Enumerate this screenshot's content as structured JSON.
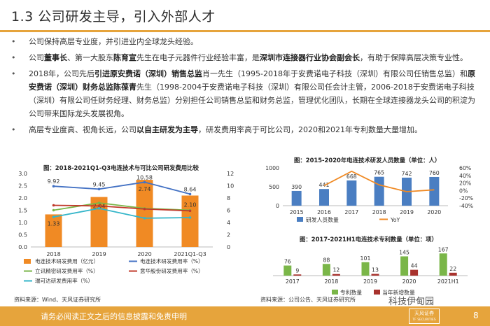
{
  "title": "1.3 公司研发主导，引入外部人才",
  "bullets": [
    {
      "segments": [
        {
          "t": "公司保持高层专业度，并引进业内全球龙头经验。",
          "b": false
        }
      ]
    },
    {
      "segments": [
        {
          "t": "公司",
          "b": false
        },
        {
          "t": "董事长",
          "b": true
        },
        {
          "t": "、第一大股东",
          "b": false
        },
        {
          "t": "陈育宣",
          "b": true
        },
        {
          "t": "先生在电子元器件行业经验丰富，是",
          "b": false
        },
        {
          "t": "深圳市连接器行业协会副会长",
          "b": true
        },
        {
          "t": "，有助于保障高层决策专业性。",
          "b": false
        }
      ]
    },
    {
      "segments": [
        {
          "t": "2018年，公司先后",
          "b": false
        },
        {
          "t": "引进原安费诺（深圳）销售总监",
          "b": true
        },
        {
          "t": "肖一先生（1995-2018年于安费诺电子科技（深圳）有限公司任销售总监）和",
          "b": false
        },
        {
          "t": "原安费诺（深圳）财务总监陈葆青",
          "b": true
        },
        {
          "t": "先生（1998-2004于安费诺电子科技（深圳）有限公司任会计主管，2006-2018于安费诺电子科技（深圳）有限公司任财务经理、财务总监）分别担任公司销售总监和财务总监，管理优化团队，长期在全球连接器龙头公司的积淀为公司带来国际龙头发展视角。",
          "b": false
        }
      ]
    },
    {
      "segments": [
        {
          "t": "高层专业度高、视角长远，公司",
          "b": false
        },
        {
          "t": "以自主研发为主导",
          "b": true
        },
        {
          "t": "，研发费用率高于可比公司，2020和2021年专利数量大量增加。",
          "b": false
        }
      ]
    }
  ],
  "panels": {
    "left": {
      "title": "图：2018-2021Q1-Q3电连技术与可比公司研发费用比较",
      "source": "资料来源：Wind、天风证券研究所"
    },
    "right_top": {
      "title": "图：2015-2020年电连技术研发人员数量（单位：人）"
    },
    "right_bottom": {
      "title": "图：2017-2021H1电连技术专利数量（单位：项）",
      "source": "资料来源：公司公告、天风证券研究所"
    }
  },
  "chart_data": [
    {
      "type": "bar",
      "title": "图：2018-2021Q1-Q3电连技术与可比公司研发费用比较",
      "categories": [
        "2018",
        "2019",
        "2020",
        "2021Q1-Q3"
      ],
      "ylim_left": [
        0,
        3.0
      ],
      "ylim_right": [
        0,
        12
      ],
      "left_ticks": [
        "0.0",
        "0.5",
        "1.0",
        "1.5",
        "2.0",
        "2.5",
        "3.0"
      ],
      "right_ticks": [
        "0",
        "2",
        "4",
        "6",
        "8",
        "10",
        "12"
      ],
      "bar_series": {
        "name": "电连技术研发费用（亿元）",
        "values": [
          1.33,
          2.04,
          2.74,
          2.1
        ],
        "labels": [
          "1.33",
          "2.04",
          "2.74",
          "2.10"
        ],
        "color": "#f08a24"
      },
      "line_series": [
        {
          "name": "电连技术研发费用率（%）",
          "values": [
            9.92,
            9.45,
            10.58,
            8.64
          ],
          "labels": [
            "9.92",
            "9.45",
            "10.58",
            "8.64"
          ],
          "color": "#4472c4"
        },
        {
          "name": "立讯精密研发费用率（%）",
          "values": [
            6.0,
            7.2,
            6.3,
            6.0
          ],
          "color": "#7ab648"
        },
        {
          "name": "意华股份研发费用率（%）",
          "values": [
            6.8,
            6.7,
            6.2,
            5.9
          ],
          "color": "#c0392b"
        },
        {
          "name": "瑞可达研发费用率（%）",
          "values": [
            4.9,
            6.3,
            4.7,
            4.8
          ],
          "color": "#33b5c9"
        }
      ]
    },
    {
      "type": "bar",
      "title": "图：2015-2020年电连技术研发人员数量（单位：人）",
      "categories": [
        "2015",
        "2016",
        "2017",
        "2018",
        "2019",
        "2020"
      ],
      "ylim_left": [
        0,
        1000
      ],
      "ylim_right": [
        -40,
        60
      ],
      "left_ticks": [
        "0",
        "500",
        "1000"
      ],
      "right_ticks": [
        "-40%",
        "-20%",
        "0%",
        "20%",
        "40%",
        "60%"
      ],
      "bar_series": {
        "name": "研发人员数量",
        "values": [
          390,
          441,
          668,
          765,
          742,
          760
        ],
        "labels": [
          "390",
          "441",
          "668",
          "765",
          "742",
          "760"
        ],
        "color": "#4a7ec2"
      },
      "line_series": [
        {
          "name": "YoY",
          "values": [
            null,
            13,
            51,
            15,
            -3,
            2
          ],
          "color": "#f08a24"
        }
      ]
    },
    {
      "type": "bar",
      "title": "图：2017-2021H1电连技术专利数量（单位：项）",
      "categories": [
        "2017",
        "2018",
        "2019",
        "2020",
        "2021H1"
      ],
      "ylim": [
        0,
        200
      ],
      "series": [
        {
          "name": "专利数量",
          "values": [
            76,
            88,
            101,
            145,
            167
          ],
          "labels": [
            "76",
            "88",
            "101",
            "145",
            "167"
          ],
          "color": "#7ab648"
        },
        {
          "name": "当年新增数量",
          "values": [
            9,
            12,
            13,
            44,
            22
          ],
          "labels": [
            "9",
            "12",
            "13",
            "44",
            "22"
          ],
          "color": "#a8322d"
        }
      ]
    }
  ],
  "footer": {
    "disclaimer": "请务必阅读正文之后的信息披露和免责申明",
    "logo_text": "天风证券",
    "logo_sub": "TF SECURITIES",
    "page": "8",
    "watermark": "科技伊甸园"
  },
  "colors": {
    "accent": "#e6a43c"
  }
}
